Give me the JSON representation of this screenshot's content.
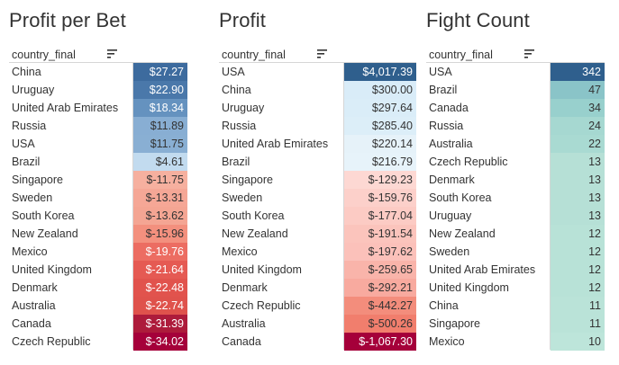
{
  "chart_data": [
    {
      "type": "table",
      "title": "Profit per Bet",
      "row_header": "country_final",
      "categories": [
        "China",
        "Uruguay",
        "United Arab Emirates",
        "Russia",
        "USA",
        "Brazil",
        "Singapore",
        "Sweden",
        "South Korea",
        "New Zealand",
        "Mexico",
        "United Kingdom",
        "Denmark",
        "Australia",
        "Canada",
        "Czech Republic"
      ],
      "values": [
        27.27,
        22.9,
        18.34,
        11.89,
        11.75,
        4.61,
        -11.75,
        -13.31,
        -13.62,
        -15.96,
        -19.76,
        -21.64,
        -22.48,
        -22.74,
        -31.39,
        -34.02
      ],
      "labels": [
        "$27.27",
        "$22.90",
        "$18.34",
        "$11.89",
        "$11.75",
        "$4.61",
        "$-11.75",
        "$-13.31",
        "$-13.62",
        "$-15.96",
        "$-19.76",
        "$-21.64",
        "$-22.48",
        "$-22.74",
        "$-31.39",
        "$-34.02"
      ],
      "colors": [
        "#3d6b9e",
        "#4a78aa",
        "#6592bf",
        "#88aed3",
        "#89afd3",
        "#c2dbef",
        "#f6b09f",
        "#f5a796",
        "#f4a593",
        "#f3907e",
        "#ec6d62",
        "#e55a53",
        "#e1534d",
        "#df524c",
        "#ad1b3b",
        "#a5003a"
      ]
    },
    {
      "type": "table",
      "title": "Profit",
      "row_header": "country_final",
      "categories": [
        "USA",
        "China",
        "Uruguay",
        "Russia",
        "United Arab Emirates",
        "Brazil",
        "Singapore",
        "Sweden",
        "South Korea",
        "New Zealand",
        "Mexico",
        "United Kingdom",
        "Denmark",
        "Czech Republic",
        "Australia",
        "Canada"
      ],
      "values": [
        4017.39,
        300.0,
        297.64,
        285.4,
        220.14,
        216.79,
        -129.23,
        -159.76,
        -177.04,
        -191.54,
        -197.62,
        -259.65,
        -292.21,
        -442.27,
        -500.26,
        -1067.3
      ],
      "labels": [
        "$4,017.39",
        "$300.00",
        "$297.64",
        "$285.40",
        "$220.14",
        "$216.79",
        "$-129.23",
        "$-159.76",
        "$-177.04",
        "$-191.54",
        "$-197.62",
        "$-259.65",
        "$-292.21",
        "$-442.27",
        "$-500.26",
        "$-1,067.30"
      ],
      "colors": [
        "#2f5f8d",
        "#d9ecf8",
        "#daedf8",
        "#dceef8",
        "#e6f2f9",
        "#e7f3fa",
        "#fdd8d3",
        "#fcd0ca",
        "#fccbc4",
        "#fbc4bc",
        "#fbc1ba",
        "#f9b4aa",
        "#f8aa9f",
        "#f38d7c",
        "#f17e6d",
        "#a5003a"
      ]
    },
    {
      "type": "table",
      "title": "Fight Count",
      "row_header": "country_final",
      "categories": [
        "USA",
        "Brazil",
        "Canada",
        "Russia",
        "Australia",
        "Czech Republic",
        "Denmark",
        "South Korea",
        "Uruguay",
        "New Zealand",
        "Sweden",
        "United Arab Emirates",
        "United Kingdom",
        "China",
        "Singapore",
        "Mexico"
      ],
      "values": [
        342,
        47,
        34,
        24,
        22,
        13,
        13,
        13,
        13,
        12,
        12,
        12,
        12,
        11,
        11,
        10
      ],
      "labels": [
        "342",
        "47",
        "34",
        "24",
        "22",
        "13",
        "13",
        "13",
        "13",
        "12",
        "12",
        "12",
        "12",
        "11",
        "11",
        "10"
      ],
      "colors": [
        "#2f5f8d",
        "#8ac4c8",
        "#98d0cd",
        "#a6d8d1",
        "#a9dad2",
        "#b6e0d6",
        "#b6e0d6",
        "#b6e0d6",
        "#b6e0d6",
        "#b8e2d7",
        "#b8e2d7",
        "#b8e2d7",
        "#b8e2d7",
        "#bae3d8",
        "#bae3d8",
        "#bde5da"
      ]
    }
  ]
}
